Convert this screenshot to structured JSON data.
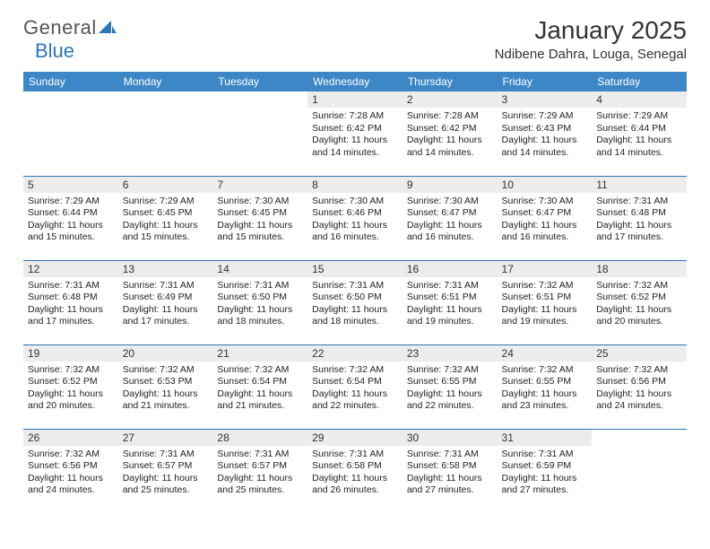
{
  "logo": {
    "text1": "General",
    "text2": "Blue"
  },
  "title": "January 2025",
  "subtitle": "Ndibene Dahra, Louga, Senegal",
  "weekdays": [
    "Sunday",
    "Monday",
    "Tuesday",
    "Wednesday",
    "Thursday",
    "Friday",
    "Saturday"
  ],
  "colors": {
    "header_bg": "#3d87c7",
    "header_fg": "#ffffff",
    "border": "#2e75b6",
    "daynum_bg": "#ececec",
    "logo_gray": "#555555",
    "logo_blue": "#2e75b6",
    "text": "#333333"
  },
  "weeks": [
    [
      null,
      null,
      null,
      {
        "n": "1",
        "sr": "7:28 AM",
        "ss": "6:42 PM",
        "dl": "11 hours and 14 minutes."
      },
      {
        "n": "2",
        "sr": "7:28 AM",
        "ss": "6:42 PM",
        "dl": "11 hours and 14 minutes."
      },
      {
        "n": "3",
        "sr": "7:29 AM",
        "ss": "6:43 PM",
        "dl": "11 hours and 14 minutes."
      },
      {
        "n": "4",
        "sr": "7:29 AM",
        "ss": "6:44 PM",
        "dl": "11 hours and 14 minutes."
      }
    ],
    [
      {
        "n": "5",
        "sr": "7:29 AM",
        "ss": "6:44 PM",
        "dl": "11 hours and 15 minutes."
      },
      {
        "n": "6",
        "sr": "7:29 AM",
        "ss": "6:45 PM",
        "dl": "11 hours and 15 minutes."
      },
      {
        "n": "7",
        "sr": "7:30 AM",
        "ss": "6:45 PM",
        "dl": "11 hours and 15 minutes."
      },
      {
        "n": "8",
        "sr": "7:30 AM",
        "ss": "6:46 PM",
        "dl": "11 hours and 16 minutes."
      },
      {
        "n": "9",
        "sr": "7:30 AM",
        "ss": "6:47 PM",
        "dl": "11 hours and 16 minutes."
      },
      {
        "n": "10",
        "sr": "7:30 AM",
        "ss": "6:47 PM",
        "dl": "11 hours and 16 minutes."
      },
      {
        "n": "11",
        "sr": "7:31 AM",
        "ss": "6:48 PM",
        "dl": "11 hours and 17 minutes."
      }
    ],
    [
      {
        "n": "12",
        "sr": "7:31 AM",
        "ss": "6:48 PM",
        "dl": "11 hours and 17 minutes."
      },
      {
        "n": "13",
        "sr": "7:31 AM",
        "ss": "6:49 PM",
        "dl": "11 hours and 17 minutes."
      },
      {
        "n": "14",
        "sr": "7:31 AM",
        "ss": "6:50 PM",
        "dl": "11 hours and 18 minutes."
      },
      {
        "n": "15",
        "sr": "7:31 AM",
        "ss": "6:50 PM",
        "dl": "11 hours and 18 minutes."
      },
      {
        "n": "16",
        "sr": "7:31 AM",
        "ss": "6:51 PM",
        "dl": "11 hours and 19 minutes."
      },
      {
        "n": "17",
        "sr": "7:32 AM",
        "ss": "6:51 PM",
        "dl": "11 hours and 19 minutes."
      },
      {
        "n": "18",
        "sr": "7:32 AM",
        "ss": "6:52 PM",
        "dl": "11 hours and 20 minutes."
      }
    ],
    [
      {
        "n": "19",
        "sr": "7:32 AM",
        "ss": "6:52 PM",
        "dl": "11 hours and 20 minutes."
      },
      {
        "n": "20",
        "sr": "7:32 AM",
        "ss": "6:53 PM",
        "dl": "11 hours and 21 minutes."
      },
      {
        "n": "21",
        "sr": "7:32 AM",
        "ss": "6:54 PM",
        "dl": "11 hours and 21 minutes."
      },
      {
        "n": "22",
        "sr": "7:32 AM",
        "ss": "6:54 PM",
        "dl": "11 hours and 22 minutes."
      },
      {
        "n": "23",
        "sr": "7:32 AM",
        "ss": "6:55 PM",
        "dl": "11 hours and 22 minutes."
      },
      {
        "n": "24",
        "sr": "7:32 AM",
        "ss": "6:55 PM",
        "dl": "11 hours and 23 minutes."
      },
      {
        "n": "25",
        "sr": "7:32 AM",
        "ss": "6:56 PM",
        "dl": "11 hours and 24 minutes."
      }
    ],
    [
      {
        "n": "26",
        "sr": "7:32 AM",
        "ss": "6:56 PM",
        "dl": "11 hours and 24 minutes."
      },
      {
        "n": "27",
        "sr": "7:31 AM",
        "ss": "6:57 PM",
        "dl": "11 hours and 25 minutes."
      },
      {
        "n": "28",
        "sr": "7:31 AM",
        "ss": "6:57 PM",
        "dl": "11 hours and 25 minutes."
      },
      {
        "n": "29",
        "sr": "7:31 AM",
        "ss": "6:58 PM",
        "dl": "11 hours and 26 minutes."
      },
      {
        "n": "30",
        "sr": "7:31 AM",
        "ss": "6:58 PM",
        "dl": "11 hours and 27 minutes."
      },
      {
        "n": "31",
        "sr": "7:31 AM",
        "ss": "6:59 PM",
        "dl": "11 hours and 27 minutes."
      },
      null
    ]
  ],
  "labels": {
    "sunrise": "Sunrise:",
    "sunset": "Sunset:",
    "daylight": "Daylight:"
  }
}
